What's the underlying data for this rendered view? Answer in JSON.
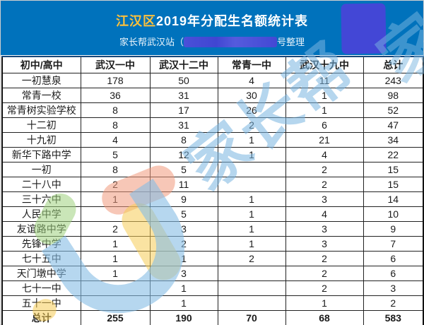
{
  "banner": {
    "title_highlight": "江汉区",
    "title_rest": "2019年分配生名额统计表",
    "subtitle_prefix": "家长帮武汉站（",
    "subtitle_suffix": "号整理",
    "bg_color": "#0072bc",
    "highlight_color": "#ffc13b",
    "redaction_color": "#4347d6"
  },
  "watermark": {
    "text": "家长帮",
    "fragment": "家",
    "color": "#79b5e0",
    "logo_colors": {
      "green": "#9ed17e",
      "salmon": "#f0997c",
      "yellow": "#f6cc55",
      "blue": "#85bde4"
    }
  },
  "table": {
    "columns": [
      "初中/高中",
      "武汉一中",
      "武汉十二中",
      "常青一中",
      "武汉十九中",
      "总计"
    ],
    "rows": [
      {
        "school": "一初慧泉",
        "values": [
          "178",
          "50",
          "4",
          "11",
          "243"
        ]
      },
      {
        "school": "常青一校",
        "values": [
          "36",
          "31",
          "30",
          "1",
          "98"
        ]
      },
      {
        "school": "常青树实验学校",
        "values": [
          "8",
          "17",
          "26",
          "1",
          "52"
        ]
      },
      {
        "school": "十二初",
        "values": [
          "8",
          "31",
          "2",
          "6",
          "47"
        ]
      },
      {
        "school": "十九初",
        "values": [
          "4",
          "8",
          "1",
          "21",
          "34"
        ]
      },
      {
        "school": "新华下路中学",
        "values": [
          "5",
          "12",
          "1",
          "4",
          "22"
        ]
      },
      {
        "school": "一初",
        "values": [
          "8",
          "5",
          "",
          "2",
          "15"
        ]
      },
      {
        "school": "二十八中",
        "values": [
          "2",
          "11",
          "",
          "2",
          "15"
        ]
      },
      {
        "school": "三十六中",
        "values": [
          "1",
          "9",
          "1",
          "3",
          "14"
        ]
      },
      {
        "school": "人民中学",
        "values": [
          "",
          "5",
          "1",
          "4",
          "10"
        ]
      },
      {
        "school": "友谊路中学",
        "values": [
          "2",
          "3",
          "1",
          "3",
          "9"
        ]
      },
      {
        "school": "先锋中学",
        "values": [
          "1",
          "2",
          "1",
          "3",
          "7"
        ]
      },
      {
        "school": "七十五中",
        "values": [
          "1",
          "1",
          "2",
          "2",
          "6"
        ]
      },
      {
        "school": "天门墩中学",
        "values": [
          "1",
          "3",
          "",
          "2",
          "6"
        ]
      },
      {
        "school": "七十一中",
        "values": [
          "",
          "1",
          "",
          "2",
          "3"
        ]
      },
      {
        "school": "五十一中",
        "values": [
          "",
          "1",
          "",
          "1",
          "2"
        ]
      }
    ],
    "total": {
      "school": "总计",
      "values": [
        "255",
        "190",
        "70",
        "68",
        "583"
      ]
    }
  }
}
